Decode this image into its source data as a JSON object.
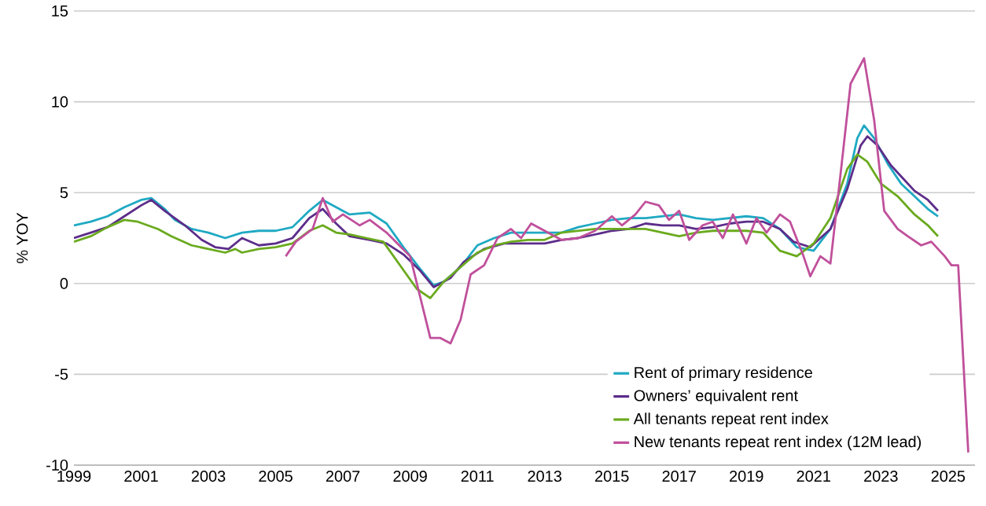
{
  "chart_data": {
    "type": "line",
    "ylabel": "% YOY",
    "xlim": [
      1999,
      2025.8
    ],
    "ylim": [
      -10,
      15
    ],
    "xticks": [
      1999,
      2001,
      2003,
      2005,
      2007,
      2009,
      2011,
      2013,
      2015,
      2017,
      2019,
      2021,
      2023,
      2025
    ],
    "yticks": [
      -10,
      -5,
      0,
      5,
      10,
      15
    ],
    "grid": "y",
    "legend": "bottom right",
    "series": [
      {
        "name": "Rent of primary residence",
        "color": "#1fa9c3",
        "x": [
          1999,
          1999.5,
          2000,
          2000.5,
          2001,
          2001.3,
          2001.7,
          2002,
          2002.5,
          2003,
          2003.5,
          2004,
          2004.5,
          2005,
          2005.5,
          2006,
          2006.4,
          2006.8,
          2007.2,
          2007.8,
          2008.3,
          2008.8,
          2009.3,
          2009.7,
          2010,
          2010.5,
          2011,
          2011.5,
          2012,
          2012.5,
          2013,
          2013.5,
          2014,
          2014.5,
          2015,
          2015.5,
          2016,
          2016.5,
          2017,
          2017.5,
          2018,
          2018.5,
          2019,
          2019.5,
          2020,
          2020.5,
          2021,
          2021.5,
          2022,
          2022.3,
          2022.5,
          2022.8,
          2023.2,
          2023.6,
          2024,
          2024.4,
          2024.7
        ],
        "values": [
          3.2,
          3.4,
          3.7,
          4.2,
          4.6,
          4.7,
          4.1,
          3.5,
          3.0,
          2.8,
          2.5,
          2.8,
          2.9,
          2.9,
          3.1,
          4.0,
          4.6,
          4.2,
          3.8,
          3.9,
          3.3,
          2.0,
          0.8,
          -0.1,
          0.1,
          0.9,
          2.1,
          2.5,
          2.8,
          2.8,
          2.8,
          2.8,
          3.1,
          3.3,
          3.5,
          3.6,
          3.6,
          3.7,
          3.8,
          3.6,
          3.5,
          3.6,
          3.7,
          3.6,
          3.0,
          2.0,
          1.8,
          3.0,
          5.5,
          8.0,
          8.7,
          8.0,
          6.6,
          5.5,
          4.8,
          4.1,
          3.7
        ]
      },
      {
        "name": "Owners’ equivalent rent",
        "color": "#5c2d8a",
        "x": [
          1999,
          1999.5,
          2000,
          2000.5,
          2001,
          2001.3,
          2001.7,
          2002.3,
          2002.8,
          2003.2,
          2003.6,
          2004,
          2004.5,
          2005,
          2005.5,
          2006,
          2006.4,
          2006.8,
          2007.2,
          2007.8,
          2008.3,
          2008.8,
          2009.3,
          2009.7,
          2010.2,
          2010.6,
          2011.2,
          2011.8,
          2012.5,
          2013,
          2013.5,
          2014,
          2014.5,
          2015,
          2015.5,
          2016,
          2016.5,
          2017,
          2017.5,
          2018,
          2018.5,
          2019,
          2019.5,
          2020,
          2020.4,
          2020.9,
          2021.5,
          2022,
          2022.4,
          2022.6,
          2022.9,
          2023.3,
          2023.7,
          2024,
          2024.4,
          2024.7
        ],
        "values": [
          2.5,
          2.8,
          3.1,
          3.7,
          4.3,
          4.6,
          4.0,
          3.2,
          2.4,
          2.0,
          1.9,
          2.5,
          2.1,
          2.2,
          2.5,
          3.6,
          4.1,
          3.3,
          2.6,
          2.4,
          2.2,
          1.6,
          0.7,
          -0.2,
          0.3,
          1.2,
          1.9,
          2.2,
          2.2,
          2.2,
          2.4,
          2.5,
          2.7,
          2.9,
          3.0,
          3.3,
          3.2,
          3.2,
          3.0,
          3.1,
          3.3,
          3.4,
          3.4,
          3.0,
          2.3,
          2.0,
          3.0,
          5.2,
          7.6,
          8.1,
          7.6,
          6.5,
          5.7,
          5.1,
          4.6,
          4.0
        ]
      },
      {
        "name": "All tenants repeat rent index",
        "color": "#6aaa1e",
        "x": [
          1999,
          1999.5,
          2000,
          2000.5,
          2000.9,
          2001.5,
          2001.9,
          2002.5,
          2003,
          2003.5,
          2003.8,
          2004,
          2004.5,
          2005,
          2005.5,
          2006,
          2006.4,
          2006.8,
          2007.2,
          2007.7,
          2008.2,
          2008.7,
          2009.2,
          2009.6,
          2010,
          2010.5,
          2011,
          2011.5,
          2012,
          2012.5,
          2013,
          2013.5,
          2014,
          2014.5,
          2015,
          2015.5,
          2016,
          2016.5,
          2017,
          2017.5,
          2018,
          2018.5,
          2019,
          2019.5,
          2020,
          2020.5,
          2021,
          2021.5,
          2022,
          2022.3,
          2022.6,
          2023,
          2023.5,
          2024,
          2024.4,
          2024.7
        ],
        "values": [
          2.3,
          2.6,
          3.1,
          3.5,
          3.4,
          3.0,
          2.6,
          2.1,
          1.9,
          1.7,
          1.9,
          1.7,
          1.9,
          2.0,
          2.2,
          2.9,
          3.2,
          2.8,
          2.7,
          2.5,
          2.3,
          1.0,
          -0.3,
          -0.8,
          0.1,
          0.9,
          1.7,
          2.1,
          2.3,
          2.4,
          2.4,
          2.8,
          2.9,
          3.0,
          3.0,
          3.0,
          3.0,
          2.8,
          2.6,
          2.8,
          2.9,
          2.9,
          2.9,
          2.8,
          1.8,
          1.5,
          2.2,
          3.6,
          6.3,
          7.1,
          6.7,
          5.5,
          4.8,
          3.8,
          3.2,
          2.6
        ]
      },
      {
        "name": "New tenants repeat rent index (12M lead)",
        "color": "#c0509b",
        "x": [
          2005.3,
          2005.6,
          2006.1,
          2006.4,
          2006.7,
          2007,
          2007.5,
          2007.8,
          2008.3,
          2009,
          2009.6,
          2009.9,
          2010.2,
          2010.5,
          2010.8,
          2011.2,
          2011.6,
          2012,
          2012.3,
          2012.6,
          2013,
          2013.5,
          2014,
          2014.5,
          2015,
          2015.3,
          2015.7,
          2016,
          2016.4,
          2016.7,
          2017,
          2017.3,
          2017.7,
          2018,
          2018.3,
          2018.6,
          2019,
          2019.3,
          2019.6,
          2020,
          2020.3,
          2020.7,
          2020.9,
          2021.2,
          2021.5,
          2021.8,
          2022.1,
          2022.5,
          2022.8,
          2023.1,
          2023.5,
          2023.8,
          2024.2,
          2024.5,
          2024.9,
          2025.1,
          2025.3,
          2025.6
        ],
        "values": [
          1.5,
          2.3,
          3.0,
          4.7,
          3.4,
          3.8,
          3.2,
          3.5,
          2.8,
          1.5,
          -3.0,
          -3.0,
          -3.3,
          -2.0,
          0.5,
          1.0,
          2.5,
          3.0,
          2.5,
          3.3,
          2.9,
          2.4,
          2.5,
          2.9,
          3.7,
          3.2,
          3.8,
          4.5,
          4.3,
          3.5,
          4.0,
          2.4,
          3.2,
          3.4,
          2.5,
          3.8,
          2.2,
          3.6,
          2.8,
          3.8,
          3.4,
          1.5,
          0.4,
          1.5,
          1.1,
          6.0,
          11.0,
          12.4,
          9.0,
          4.0,
          3.0,
          2.6,
          2.1,
          2.3,
          1.5,
          1.0,
          1.0,
          -9.3
        ]
      }
    ]
  }
}
